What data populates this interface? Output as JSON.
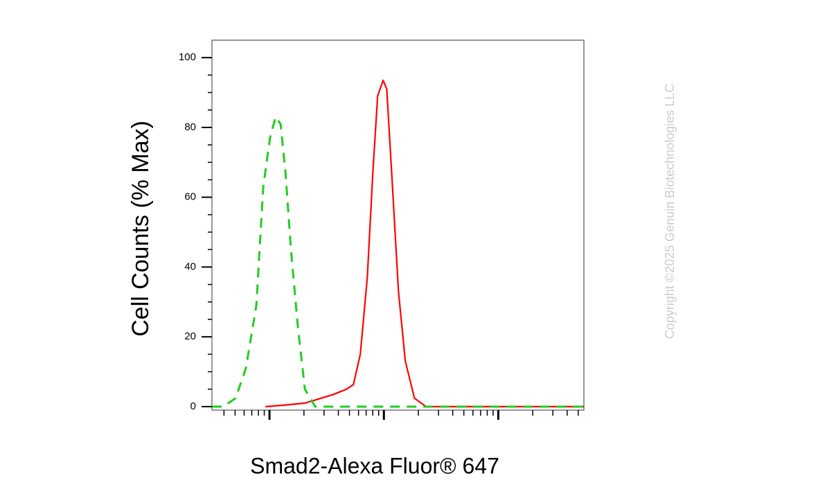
{
  "chart_data": {
    "type": "line",
    "xlabel": "Smad2-Alexa Fluor® 647",
    "ylabel": "Cell Counts (% Max)",
    "watermark": "Copyright ©2025 Genuin Biotechnologies LLC",
    "xscale": "log",
    "xlim": [
      3.14,
      5600
    ],
    "xticks": [
      10,
      100,
      1000
    ],
    "xminorticks": [
      4,
      5,
      6,
      7,
      8,
      9,
      20,
      30,
      40,
      50,
      60,
      70,
      80,
      90,
      200,
      300,
      400,
      500,
      600,
      700,
      800,
      900,
      2000,
      3000,
      4000,
      5000
    ],
    "ylim": [
      -1,
      105
    ],
    "yticks": [
      0,
      20,
      40,
      60,
      80,
      100
    ],
    "yminorticks": [
      5,
      10,
      15,
      25,
      30,
      35,
      45,
      50,
      55,
      65,
      70,
      75,
      85,
      90,
      95
    ],
    "series": [
      {
        "color": "#ff0000",
        "dashed": false,
        "x": [
          9.2,
          13.4,
          20.4,
          26.9,
          35.6,
          47.1,
          54.1,
          62.2,
          71.6,
          80,
          88.1,
          98.6,
          106,
          117,
          134,
          154,
          185,
          234,
          5600
        ],
        "values": [
          0,
          0.4,
          1,
          2.2,
          3.4,
          5,
          6.3,
          15,
          37,
          67,
          89,
          93.5,
          91,
          67,
          33,
          13,
          2.4,
          0,
          0
        ]
      },
      {
        "color": "#22cc22",
        "dashed": true,
        "x": [
          3.14,
          3.93,
          5.05,
          6.22,
          7.67,
          8.82,
          10.1,
          11.3,
          12.5,
          13.8,
          15.4,
          17.7,
          20.4,
          25.1,
          31,
          190,
          5600
        ],
        "values": [
          0,
          0,
          2.4,
          11,
          29,
          63,
          77,
          83,
          81,
          67,
          45,
          23,
          5,
          0,
          0,
          0,
          0
        ]
      }
    ]
  }
}
